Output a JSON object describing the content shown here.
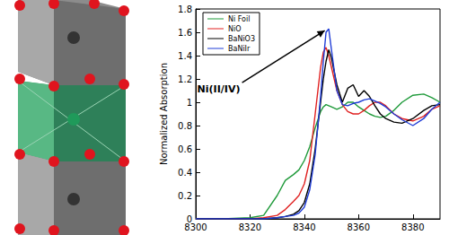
{
  "chart_data": {
    "type": "line",
    "x": [
      8300,
      8310,
      8320,
      8325,
      8330,
      8333,
      8336,
      8338,
      8340,
      8342,
      8344,
      8345,
      8346,
      8347,
      8348,
      8349,
      8350,
      8352,
      8354,
      8356,
      8358,
      8360,
      8362,
      8364,
      8366,
      8368,
      8370,
      8373,
      8376,
      8380,
      8384,
      8387,
      8390
    ],
    "series": [
      {
        "name": "Ni Foil",
        "color": "#1f9a3a",
        "values": [
          0,
          0,
          0.01,
          0.03,
          0.2,
          0.33,
          0.38,
          0.42,
          0.5,
          0.62,
          0.78,
          0.85,
          0.92,
          0.96,
          0.98,
          0.97,
          0.96,
          0.94,
          0.96,
          1.0,
          1.0,
          0.96,
          0.93,
          0.9,
          0.88,
          0.87,
          0.88,
          0.93,
          1.0,
          1.06,
          1.07,
          1.04,
          1.0
        ]
      },
      {
        "name": "NiO",
        "color": "#e02020",
        "values": [
          0,
          0,
          0,
          0.01,
          0.03,
          0.08,
          0.15,
          0.2,
          0.3,
          0.5,
          0.9,
          1.1,
          1.3,
          1.43,
          1.47,
          1.4,
          1.3,
          1.1,
          0.98,
          0.92,
          0.9,
          0.9,
          0.93,
          0.97,
          1.0,
          1.0,
          0.97,
          0.9,
          0.86,
          0.84,
          0.88,
          0.94,
          0.97
        ]
      },
      {
        "name": "BaNiO3",
        "color": "#000000",
        "values": [
          0,
          0,
          0,
          0,
          0.01,
          0.02,
          0.04,
          0.07,
          0.14,
          0.3,
          0.6,
          0.8,
          1.0,
          1.2,
          1.35,
          1.45,
          1.38,
          1.15,
          1.0,
          1.12,
          1.15,
          1.05,
          1.1,
          1.05,
          0.97,
          0.9,
          0.86,
          0.83,
          0.82,
          0.86,
          0.93,
          0.97,
          0.98
        ]
      },
      {
        "name": "BaNiIr",
        "color": "#1f3cd6",
        "values": [
          0,
          0,
          0,
          0,
          0.01,
          0.02,
          0.03,
          0.05,
          0.1,
          0.25,
          0.55,
          0.8,
          1.05,
          1.35,
          1.6,
          1.63,
          1.45,
          1.1,
          0.98,
          0.97,
          0.99,
          1.0,
          1.02,
          1.03,
          1.01,
          0.99,
          0.96,
          0.9,
          0.85,
          0.8,
          0.86,
          0.94,
          1.0
        ]
      }
    ],
    "ylabel": "Normalized Absorption",
    "xlim": [
      8300,
      8390
    ],
    "xticks": [
      8300,
      8320,
      8340,
      8360,
      8380
    ],
    "ylim": [
      0,
      1.8
    ],
    "yticks": [
      0,
      0.2,
      0.4,
      0.6,
      0.8,
      1,
      1.2,
      1.4,
      1.6,
      1.8
    ],
    "grid": false,
    "legend": "upper left",
    "annotations": [
      {
        "text": "Ni(II/IV)",
        "x": 8348.5,
        "y": 1.63
      }
    ]
  }
}
